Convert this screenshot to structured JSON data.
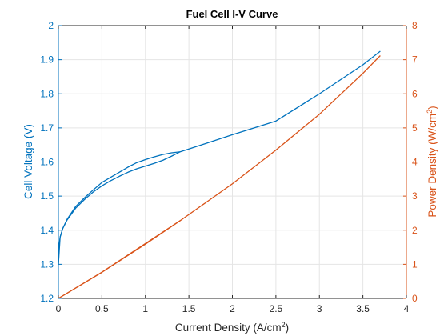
{
  "chart_data": {
    "type": "line",
    "title": "Fuel Cell I-V Curve",
    "xlabel": "Current Density (A/cm",
    "xlabel_sup": "2",
    "xlabel_suffix": ")",
    "ylabel_left": "Cell Voltage (V)",
    "ylabel_right": "Power Density (W/cm",
    "ylabel_right_sup": "2",
    "ylabel_right_suffix": ")",
    "xlim": [
      0,
      4
    ],
    "ylim_left": [
      1.2,
      2
    ],
    "ylim_right": [
      0,
      8
    ],
    "x_ticks": [
      "0",
      "0.5",
      "1",
      "1.5",
      "2",
      "2.5",
      "3",
      "3.5",
      "4"
    ],
    "y_left_ticks": [
      "1.2",
      "1.3",
      "1.4",
      "1.5",
      "1.6",
      "1.7",
      "1.8",
      "1.9",
      "2"
    ],
    "y_right_ticks": [
      "0",
      "1",
      "2",
      "3",
      "4",
      "5",
      "6",
      "7",
      "8"
    ],
    "grid": true,
    "colors": {
      "left": "#0072BD",
      "right": "#D95319",
      "grid": "#e5e5e5",
      "axis": "#262626"
    },
    "series": [
      {
        "axis": "left",
        "points": [
          [
            0.0,
            1.3
          ],
          [
            0.005,
            1.35
          ],
          [
            0.02,
            1.38
          ],
          [
            0.05,
            1.405
          ],
          [
            0.1,
            1.43
          ],
          [
            0.2,
            1.465
          ],
          [
            0.3,
            1.49
          ],
          [
            0.4,
            1.512
          ],
          [
            0.5,
            1.53
          ],
          [
            0.6,
            1.545
          ],
          [
            0.7,
            1.558
          ],
          [
            0.8,
            1.57
          ],
          [
            0.9,
            1.58
          ],
          [
            1.0,
            1.588
          ],
          [
            1.1,
            1.596
          ],
          [
            1.2,
            1.605
          ],
          [
            1.3,
            1.617
          ],
          [
            1.4,
            1.63
          ],
          [
            1.5,
            1.638
          ],
          [
            2.0,
            1.68
          ],
          [
            2.5,
            1.72
          ],
          [
            3.0,
            1.8
          ],
          [
            3.5,
            1.885
          ],
          [
            3.7,
            1.925
          ]
        ]
      },
      {
        "axis": "left",
        "points": [
          [
            1.4,
            1.63
          ],
          [
            1.3,
            1.627
          ],
          [
            1.2,
            1.622
          ],
          [
            1.1,
            1.615
          ],
          [
            1.0,
            1.607
          ],
          [
            0.9,
            1.598
          ],
          [
            0.8,
            1.585
          ],
          [
            0.7,
            1.57
          ],
          [
            0.6,
            1.555
          ],
          [
            0.5,
            1.54
          ],
          [
            0.4,
            1.518
          ],
          [
            0.3,
            1.495
          ],
          [
            0.2,
            1.47
          ],
          [
            0.1,
            1.432
          ],
          [
            0.05,
            1.405
          ],
          [
            0.02,
            1.38
          ],
          [
            0.0,
            1.3
          ]
        ]
      },
      {
        "axis": "right",
        "points": [
          [
            0.0,
            0.0
          ],
          [
            0.5,
            0.765
          ],
          [
            1.0,
            1.59
          ],
          [
            1.4,
            2.28
          ],
          [
            1.5,
            2.46
          ],
          [
            2.0,
            3.36
          ],
          [
            2.5,
            4.35
          ],
          [
            3.0,
            5.4
          ],
          [
            3.5,
            6.6
          ],
          [
            3.7,
            7.12
          ]
        ]
      },
      {
        "axis": "right",
        "points": [
          [
            1.4,
            2.28
          ],
          [
            1.0,
            1.61
          ],
          [
            0.5,
            0.77
          ],
          [
            0.0,
            0.0
          ]
        ]
      }
    ]
  }
}
